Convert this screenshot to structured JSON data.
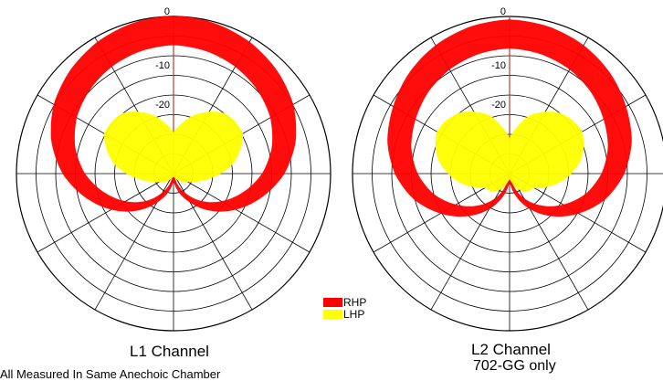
{
  "chart_data": [
    {
      "type": "polar",
      "title": "L1 Channel",
      "radial_ticks": [
        "0",
        "-10",
        "-20"
      ],
      "rings": 8,
      "spokes_deg": 30,
      "series": [
        {
          "name": "RHP",
          "color": "#ff0000",
          "shape": "cardioid",
          "angle_deg": [
            0,
            15,
            30,
            45,
            60,
            75,
            90,
            105,
            120,
            135,
            150,
            165,
            180
          ],
          "level_db": [
            0,
            -0.5,
            -1.5,
            -3,
            -5,
            -8,
            -12,
            -17,
            -22,
            -27,
            -32,
            -36,
            -40
          ]
        },
        {
          "name": "LHP",
          "color": "#ffff00",
          "shape": "butterfly",
          "angle_deg": [
            0,
            20,
            40,
            60,
            80,
            100,
            120,
            140,
            160,
            180
          ],
          "level_db": [
            -22,
            -20,
            -19,
            -20,
            -24,
            -30,
            -34,
            -38,
            -40,
            -40
          ]
        }
      ]
    },
    {
      "type": "polar",
      "title": "L2 Channel",
      "subtitle": "702-GG only",
      "radial_ticks": [
        "0",
        "-10",
        "-20"
      ],
      "rings": 8,
      "spokes_deg": 30,
      "series": [
        {
          "name": "RHP",
          "color": "#ff0000",
          "shape": "cardioid",
          "angle_deg": [
            0,
            15,
            30,
            45,
            60,
            75,
            90,
            105,
            120,
            135,
            150,
            165,
            180
          ],
          "level_db": [
            -1,
            -1.5,
            -2.5,
            -4,
            -6,
            -8,
            -11,
            -15,
            -20,
            -25,
            -30,
            -35,
            -40
          ]
        },
        {
          "name": "LHP",
          "color": "#ffff00",
          "shape": "butterfly",
          "angle_deg": [
            0,
            20,
            40,
            60,
            80,
            100,
            120,
            140,
            160,
            180
          ],
          "level_db": [
            -25,
            -20,
            -19,
            -19,
            -21,
            -24,
            -28,
            -33,
            -38,
            -40
          ]
        }
      ]
    }
  ],
  "legend": {
    "rhp": "RHP",
    "lhp": "LHP"
  },
  "captions": {
    "l1": "L1 Channel",
    "l2": "L2 Channel",
    "l2_sub": "702-GG only"
  },
  "footnote": "All Measured In Same Anechoic Chamber",
  "colors": {
    "rhp": "#ff0000",
    "lhp": "#ffff00",
    "grid": "#000000",
    "axis0": "#b0402a"
  }
}
